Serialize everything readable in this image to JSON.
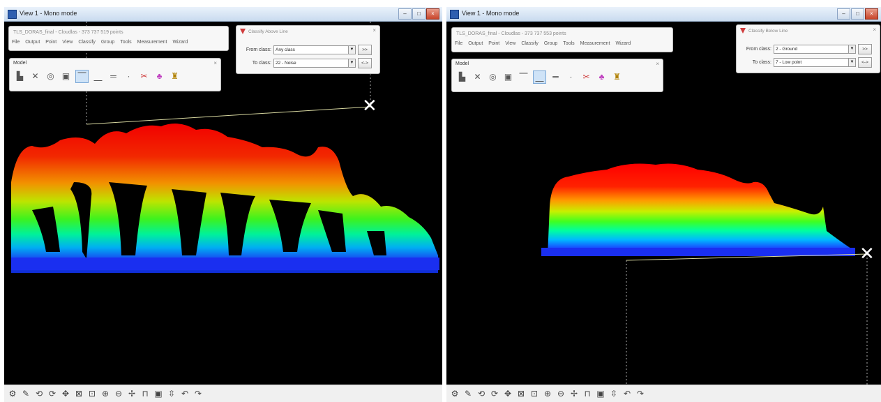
{
  "left_view": {
    "title": "View 1 - Mono mode",
    "file_info": "TLS_DORAS_final - Cloudlas - 373 737 519 points",
    "menu": [
      "File",
      "Output",
      "Point",
      "View",
      "Classify",
      "Group",
      "Tools",
      "Measurement",
      "Wizard"
    ],
    "model_toolbar": {
      "title": "Model",
      "close": "×",
      "tools": [
        "model-icon",
        "cross-section-icon",
        "circle-tool-icon",
        "square-tool-icon",
        "line-above-icon",
        "line-below-icon",
        "line-section-icon",
        "point-icon",
        "scissors-icon",
        "tree-icon",
        "paint-brush-icon"
      ]
    },
    "classify_panel": {
      "title": "Classify Above Line",
      "close": "×",
      "from_label": "From class:",
      "from_value": "Any class",
      "to_label": "To class:",
      "to_value": "22 - Noise",
      "btn1": ">>",
      "btn2": "<->"
    },
    "marker": "✕"
  },
  "right_view": {
    "title": "View 1 - Mono mode",
    "file_info": "TLS_DORAS_final - Cloudlas - 373 737 553 points",
    "menu": [
      "File",
      "Output",
      "Point",
      "View",
      "Classify",
      "Group",
      "Tools",
      "Measurement",
      "Wizard"
    ],
    "model_toolbar": {
      "title": "Model",
      "close": "×"
    },
    "classify_panel": {
      "title": "Classify Below Line",
      "close": "×",
      "from_label": "From class:",
      "from_value": "2 - Ground",
      "to_label": "To class:",
      "to_value": "7 - Low point",
      "btn1": ">>",
      "btn2": "<->"
    },
    "marker": "✕"
  },
  "window_buttons": {
    "minimize": "–",
    "maximize": "□",
    "close": "×"
  },
  "bottom_toolbar": [
    "settings-icon",
    "pen-icon",
    "rotate-icon",
    "rotate-2-icon",
    "pan-icon",
    "fit-icon",
    "zoom-window-icon",
    "zoom-in-icon",
    "zoom-out-icon",
    "pick-icon",
    "box-icon",
    "screen-icon",
    "measure-icon",
    "undo-icon",
    "redo-icon"
  ],
  "colors": {
    "canvas_bg": "#000000",
    "titlebar": "#c9dbef",
    "line": "#d8d8a0"
  }
}
